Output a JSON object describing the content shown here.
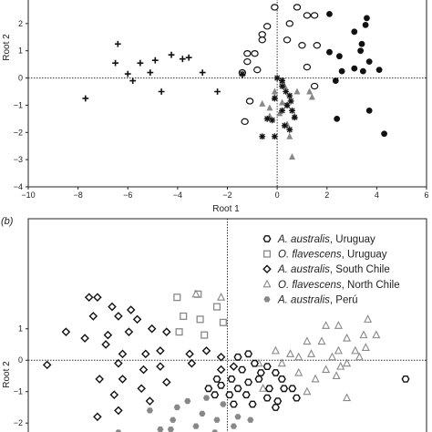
{
  "chart_data": [
    {
      "type": "scatter",
      "panel": "",
      "xlabel": "Root 1",
      "ylabel": "Root 2",
      "xlim": [
        -10,
        6
      ],
      "ylim": [
        -4,
        3
      ],
      "xticks": [
        -10,
        -8,
        -6,
        -4,
        -2,
        0,
        2,
        4,
        6
      ],
      "yticks": [
        -4,
        -3,
        -2,
        -1,
        0,
        1,
        2
      ],
      "reference_lines": {
        "x": 0,
        "y": 0,
        "style": "dotted"
      },
      "grid": false,
      "series": [
        {
          "marker": "plus",
          "color": "#111111",
          "points": [
            [
              -6.4,
              1.25
            ],
            [
              -6.5,
              0.55
            ],
            [
              -5.5,
              0.55
            ],
            [
              -4.9,
              0.65
            ],
            [
              -4.25,
              0.85
            ],
            [
              -3.8,
              0.7
            ],
            [
              -3.55,
              0.75
            ],
            [
              -6.0,
              0.15
            ],
            [
              -7.7,
              -0.75
            ],
            [
              -4.65,
              -0.5
            ],
            [
              -2.4,
              -0.5
            ],
            [
              -5.1,
              0.2
            ],
            [
              -5.8,
              -0.1
            ],
            [
              -3.0,
              0.2
            ],
            [
              -1.4,
              0.1
            ]
          ]
        },
        {
          "marker": "open-circle",
          "color": "#111111",
          "points": [
            [
              -0.1,
              2.6
            ],
            [
              0.8,
              2.6
            ],
            [
              1.2,
              2.3
            ],
            [
              1.5,
              2.3
            ],
            [
              0.5,
              2.0
            ],
            [
              -0.4,
              1.9
            ],
            [
              -0.6,
              1.6
            ],
            [
              -0.6,
              1.4
            ],
            [
              0.4,
              1.4
            ],
            [
              1.0,
              1.2
            ],
            [
              1.6,
              1.2
            ],
            [
              -1.2,
              0.9
            ],
            [
              -0.9,
              0.9
            ],
            [
              -1.2,
              0.6
            ],
            [
              -0.8,
              0.3
            ],
            [
              -1.4,
              0.2
            ],
            [
              1.2,
              0.4
            ],
            [
              -1.3,
              -1.6
            ],
            [
              -1.1,
              -0.85
            ],
            [
              1.5,
              -0.3
            ]
          ]
        },
        {
          "marker": "filled-circle",
          "color": "#111111",
          "points": [
            [
              2.1,
              2.35
            ],
            [
              3.6,
              2.2
            ],
            [
              3.55,
              1.95
            ],
            [
              3.1,
              1.7
            ],
            [
              3.4,
              1.25
            ],
            [
              3.35,
              1.0
            ],
            [
              2.1,
              0.95
            ],
            [
              2.5,
              0.8
            ],
            [
              3.7,
              0.6
            ],
            [
              2.6,
              0.25
            ],
            [
              3.1,
              0.35
            ],
            [
              3.45,
              0.25
            ],
            [
              4.1,
              0.3
            ],
            [
              2.35,
              -0.1
            ],
            [
              3.7,
              -1.2
            ],
            [
              2.4,
              -1.5
            ],
            [
              4.3,
              -2.05
            ]
          ]
        },
        {
          "marker": "filled-triangle",
          "color": "#888888",
          "points": [
            [
              -0.1,
              -0.7
            ],
            [
              0.3,
              -0.3
            ],
            [
              0.8,
              -0.5
            ],
            [
              1.3,
              -0.5
            ],
            [
              1.4,
              -0.7
            ],
            [
              0.2,
              -0.9
            ],
            [
              0.4,
              -1.0
            ],
            [
              0.1,
              -1.3
            ],
            [
              -0.3,
              -1.1
            ],
            [
              -0.6,
              -0.95
            ],
            [
              -0.3,
              -1.4
            ],
            [
              0.4,
              -1.7
            ],
            [
              0.5,
              -2.15
            ],
            [
              0.7,
              -1.4
            ],
            [
              0.2,
              -0.1
            ],
            [
              0.6,
              -2.9
            ],
            [
              -0.1,
              -0.5
            ]
          ]
        },
        {
          "marker": "asterisk",
          "color": "#111111",
          "points": [
            [
              -1.4,
              0.15
            ],
            [
              0.0,
              0.0
            ],
            [
              0.2,
              -0.1
            ],
            [
              0.35,
              -0.5
            ],
            [
              0.5,
              -0.65
            ],
            [
              0.55,
              -0.85
            ],
            [
              0.4,
              -1.0
            ],
            [
              0.2,
              -1.2
            ],
            [
              0.6,
              -1.2
            ],
            [
              0.7,
              -1.45
            ],
            [
              0.3,
              -1.75
            ],
            [
              -0.2,
              -1.55
            ],
            [
              -0.4,
              -1.5
            ],
            [
              -0.6,
              -2.15
            ],
            [
              -0.1,
              -2.15
            ],
            [
              0.5,
              -1.9
            ],
            [
              -0.1,
              -0.75
            ],
            [
              0.2,
              -0.3
            ]
          ]
        }
      ]
    },
    {
      "type": "scatter",
      "panel": "(b)",
      "ylabel": "Root 2",
      "xlim": [
        -9.5,
        9.5
      ],
      "ylim": [
        -2.4,
        4.5
      ],
      "yticks": [
        -2,
        -1,
        0,
        1
      ],
      "reference_lines": {
        "x": 0,
        "y": 0,
        "style": "dotted"
      },
      "grid": false,
      "legend": {
        "placement": "top-right",
        "entries": [
          {
            "marker": "open-hexagon",
            "color": "#111111",
            "italic": "A. australis",
            "rest": ", Uruguay"
          },
          {
            "marker": "open-square",
            "color": "#888888",
            "italic": "O. flavescens",
            "rest": ", Uruguay"
          },
          {
            "marker": "open-diamond",
            "color": "#111111",
            "italic": "A. australis",
            "rest": ", South Chile"
          },
          {
            "marker": "open-triangle",
            "color": "#888888",
            "italic": "O. flavescens",
            "rest": ", North Chile"
          },
          {
            "marker": "filled-hexagon",
            "color": "#888888",
            "italic": "A. australis",
            "rest": ", Perú"
          }
        ]
      },
      "series": [
        {
          "marker": "open-diamond",
          "color": "#111111",
          "points": [
            [
              -6.6,
              2.0
            ],
            [
              -6.2,
              2.0
            ],
            [
              -5.5,
              1.7
            ],
            [
              -6.4,
              1.4
            ],
            [
              -5.2,
              1.4
            ],
            [
              -4.6,
              1.6
            ],
            [
              -4.3,
              1.3
            ],
            [
              -7.7,
              0.9
            ],
            [
              -6.8,
              0.7
            ],
            [
              -5.7,
              0.8
            ],
            [
              -4.7,
              0.9
            ],
            [
              -3.6,
              1.0
            ],
            [
              -2.9,
              0.9
            ],
            [
              -5.8,
              0.5
            ],
            [
              -5.0,
              0.2
            ],
            [
              -3.9,
              0.2
            ],
            [
              -3.2,
              0.3
            ],
            [
              -1.8,
              0.2
            ],
            [
              -1.0,
              0.3
            ],
            [
              -0.3,
              0.1
            ],
            [
              -8.6,
              -0.15
            ],
            [
              -5.2,
              -0.1
            ],
            [
              -4.0,
              -0.3
            ],
            [
              -3.2,
              -0.2
            ],
            [
              -1.7,
              -0.1
            ],
            [
              -0.3,
              -0.3
            ],
            [
              0.3,
              -0.2
            ],
            [
              -6.1,
              -0.6
            ],
            [
              -5.0,
              -0.6
            ],
            [
              -4.1,
              -0.9
            ],
            [
              -2.9,
              -0.7
            ],
            [
              -5.4,
              -1.1
            ],
            [
              -3.7,
              -1.3
            ],
            [
              -6.2,
              -1.8
            ],
            [
              -5.2,
              -1.6
            ]
          ]
        },
        {
          "marker": "open-square",
          "color": "#888888",
          "points": [
            [
              -2.4,
              2.0
            ],
            [
              -1.4,
              2.1
            ],
            [
              -0.5,
              1.7
            ],
            [
              -0.2,
              1.2
            ],
            [
              -2.1,
              1.4
            ],
            [
              -1.3,
              1.3
            ],
            [
              -2.3,
              0.9
            ],
            [
              -1.1,
              0.8
            ]
          ]
        },
        {
          "marker": "open-triangle",
          "color": "#888888",
          "points": [
            [
              -0.3,
              2.0
            ],
            [
              -1.5,
              2.1
            ],
            [
              4.7,
              1.1
            ],
            [
              5.3,
              1.1
            ],
            [
              6.7,
              1.3
            ],
            [
              7.1,
              0.8
            ],
            [
              6.5,
              0.8
            ],
            [
              5.7,
              0.7
            ],
            [
              3.8,
              0.6
            ],
            [
              4.5,
              0.6
            ],
            [
              5.3,
              0.3
            ],
            [
              6.1,
              0.3
            ],
            [
              6.6,
              0.4
            ],
            [
              2.3,
              0.3
            ],
            [
              3.0,
              0.2
            ],
            [
              3.4,
              0.1
            ],
            [
              4.0,
              0.2
            ],
            [
              5.0,
              0.1
            ],
            [
              5.7,
              -0.1
            ],
            [
              6.3,
              0.1
            ],
            [
              1.5,
              -0.1
            ],
            [
              2.6,
              -0.1
            ],
            [
              4.7,
              -0.3
            ],
            [
              5.4,
              -0.2
            ],
            [
              3.4,
              -0.4
            ],
            [
              4.2,
              -0.6
            ],
            [
              5.2,
              -0.5
            ],
            [
              1.7,
              -0.9
            ],
            [
              3.8,
              -1.0
            ],
            [
              5.7,
              -1.2
            ]
          ]
        },
        {
          "marker": "open-hexagon",
          "color": "#111111",
          "points": [
            [
              0.5,
              0.1
            ],
            [
              1.0,
              0.2
            ],
            [
              1.3,
              -0.1
            ],
            [
              0.7,
              -0.3
            ],
            [
              1.9,
              -0.2
            ],
            [
              1.6,
              -0.4
            ],
            [
              2.3,
              -0.4
            ],
            [
              0.2,
              -0.6
            ],
            [
              1.0,
              -0.7
            ],
            [
              1.5,
              -0.6
            ],
            [
              0.5,
              -0.9
            ],
            [
              2.0,
              -0.9
            ],
            [
              2.6,
              -0.6
            ],
            [
              2.7,
              -0.9
            ],
            [
              0.1,
              -1.1
            ],
            [
              -0.3,
              -0.8
            ],
            [
              -0.9,
              -0.9
            ],
            [
              -0.5,
              -0.6
            ],
            [
              0.9,
              -1.1
            ],
            [
              1.9,
              -1.2
            ],
            [
              1.2,
              -1.4
            ],
            [
              2.3,
              -1.5
            ],
            [
              3.3,
              -1.2
            ],
            [
              3.1,
              -0.9
            ],
            [
              2.4,
              -1.3
            ],
            [
              -0.6,
              -1.1
            ],
            [
              0.3,
              -1.4
            ],
            [
              8.5,
              -0.6
            ]
          ]
        },
        {
          "marker": "filled-hexagon",
          "color": "#888888",
          "points": [
            [
              -3.7,
              -1.6
            ],
            [
              -2.4,
              -1.5
            ],
            [
              -1.9,
              -1.3
            ],
            [
              -1.0,
              -1.2
            ],
            [
              -0.2,
              -1.4
            ],
            [
              -2.6,
              -1.9
            ],
            [
              -1.2,
              -1.7
            ],
            [
              -0.5,
              -1.9
            ],
            [
              0.5,
              -1.8
            ],
            [
              -3.2,
              -2.2
            ],
            [
              -2.7,
              -2.2
            ],
            [
              -1.5,
              -2.1
            ],
            [
              0.3,
              -2.1
            ],
            [
              1.1,
              -1.9
            ],
            [
              -2.4,
              -2.4
            ],
            [
              -0.6,
              -2.3
            ],
            [
              -5.2,
              -2.3
            ]
          ]
        }
      ]
    }
  ]
}
